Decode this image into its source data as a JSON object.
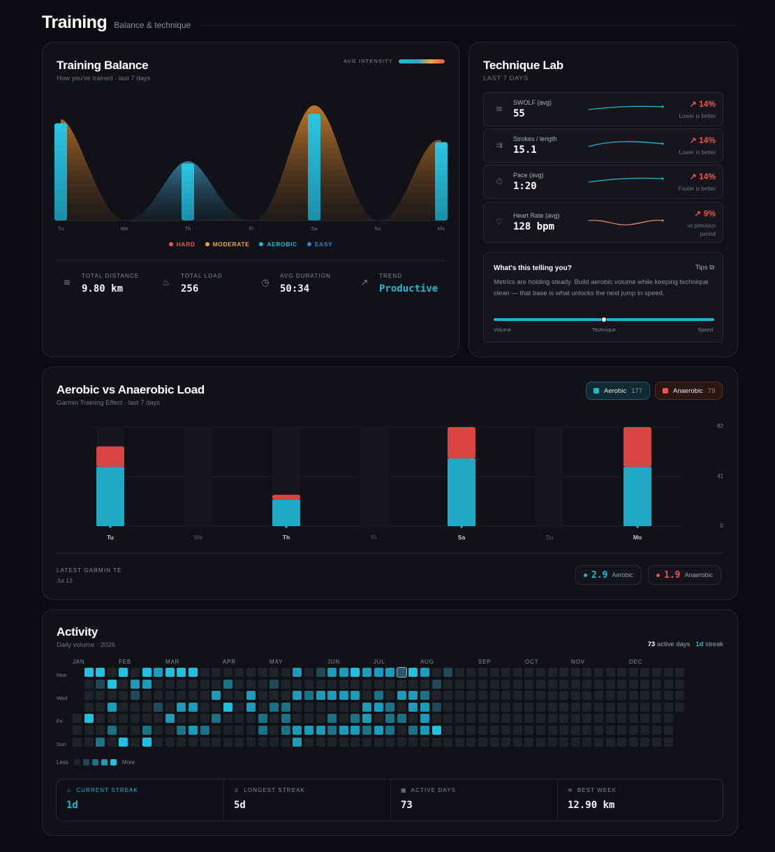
{
  "header": {
    "title": "Training",
    "subtitle": "Balance & technique"
  },
  "balance": {
    "title": "Training Balance",
    "subtitle": "How you've trained · last 7 days",
    "avg_intensity_label": "AVG INTENSITY",
    "days": [
      "Tu",
      "We",
      "Th",
      "Fr",
      "Sa",
      "Su",
      "Mo"
    ],
    "bar_levels": [
      0.82,
      0,
      0.48,
      0,
      0.9,
      0,
      0.66
    ],
    "legend": [
      {
        "label": "HARD",
        "color": "#ef5350"
      },
      {
        "label": "MODERATE",
        "color": "#f5a33a"
      },
      {
        "label": "AEROBIC",
        "color": "#22b8d6"
      },
      {
        "label": "EASY",
        "color": "#2e86d0"
      }
    ],
    "stats": [
      {
        "label": "TOTAL DISTANCE",
        "value": "9.80 km",
        "icon": "waves-icon"
      },
      {
        "label": "TOTAL LOAD",
        "value": "256",
        "icon": "flame-icon"
      },
      {
        "label": "AVG DURATION",
        "value": "50:34",
        "icon": "clock-icon"
      },
      {
        "label": "TREND",
        "value": "Productive",
        "icon": "trend-up-icon"
      }
    ]
  },
  "technique": {
    "title": "Technique Lab",
    "subtitle": "LAST 7 DAYS",
    "metrics": [
      {
        "label": "SWOLF (avg)",
        "value": "55",
        "delta": "14%",
        "note": "Lower is better",
        "icon": "waves-icon"
      },
      {
        "label": "Strokes / length",
        "value": "15.1",
        "delta": "14%",
        "note": "Lower is better",
        "icon": "strokes-icon"
      },
      {
        "label": "Pace (avg)",
        "value": "1:20",
        "delta": "14%",
        "note": "Faster is better",
        "icon": "stopwatch-icon"
      },
      {
        "label": "Heart Rate (avg)",
        "value": "128 bpm",
        "delta": "9%",
        "note": "vs previous period",
        "icon": "heart-icon"
      }
    ],
    "insight": {
      "title": "What's this telling you?",
      "tips": "Tips",
      "body": "Metrics are holding steady. Build aerobic volume while keeping technique clean — that base is what unlocks the next jump in speed.",
      "slider_labels": [
        "Volume",
        "Technique",
        "Speed"
      ],
      "slider_position": 0.5
    }
  },
  "load": {
    "title": "Aerobic vs Anaerobic Load",
    "subtitle": "Garmin Training Effect · last 7 days",
    "aerobic_pill": {
      "label": "Aerobic",
      "value": "177"
    },
    "anaerobic_pill": {
      "label": "Anaerobic",
      "value": "79"
    },
    "y_ticks": [
      "82",
      "41",
      "0"
    ],
    "latest_label": "LATEST GARMIN TE",
    "latest_date": "Jul 13",
    "latest_aerobic": {
      "value": "2.9",
      "label": "Aerobic"
    },
    "latest_anaerobic": {
      "value": "1.9",
      "label": "Anaerobic"
    }
  },
  "chart_data": {
    "type": "bar",
    "categories": [
      "Tu",
      "We",
      "Th",
      "Fr",
      "Sa",
      "Su",
      "Mo"
    ],
    "series": [
      {
        "name": "Aerobic",
        "values": [
          49,
          0,
          22,
          0,
          56,
          0,
          49
        ]
      },
      {
        "name": "Anaerobic",
        "values": [
          17,
          0,
          4,
          0,
          26,
          0,
          33
        ]
      }
    ],
    "ylim": [
      0,
      82
    ],
    "stacked": true
  },
  "activity": {
    "title": "Activity",
    "subtitle": "Daily volume · 2026",
    "active_days": "73",
    "active_days_label": "active days",
    "streak": "1d",
    "streak_label": "streak",
    "months": [
      "JAN",
      "FEB",
      "MAR",
      "APR",
      "MAY",
      "JUN",
      "JUL",
      "AUG",
      "SEP",
      "OCT",
      "NOV",
      "DEC"
    ],
    "weekday_labels": [
      "Mon",
      "Wed",
      "Fri",
      "Sun"
    ],
    "less": "Less",
    "more": "More",
    "stats": [
      {
        "label": "CURRENT STREAK",
        "value": "1d",
        "icon": "flame-icon"
      },
      {
        "label": "LONGEST STREAK",
        "value": "5d",
        "icon": "trophy-icon"
      },
      {
        "label": "ACTIVE DAYS",
        "value": "73",
        "icon": "calendar-icon"
      },
      {
        "label": "BEST WEEK",
        "value": "12.90 km",
        "icon": "waves-icon"
      }
    ]
  }
}
